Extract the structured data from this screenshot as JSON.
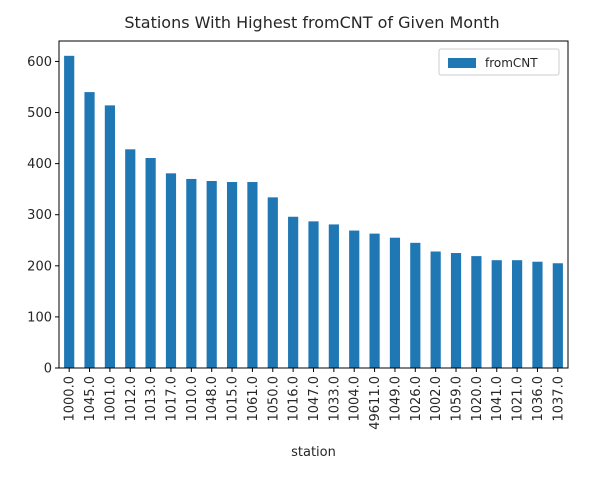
{
  "chart_data": {
    "type": "bar",
    "title": "Stations With Highest fromCNT of Given Month",
    "xlabel": "station",
    "ylabel": "",
    "ylim": [
      0,
      640
    ],
    "yticks": [
      0,
      100,
      200,
      300,
      400,
      500,
      600
    ],
    "grid": false,
    "legend_position": "top-right",
    "categories": [
      "1000.0",
      "1045.0",
      "1001.0",
      "1012.0",
      "1013.0",
      "1017.0",
      "1010.0",
      "1048.0",
      "1015.0",
      "1061.0",
      "1050.0",
      "1016.0",
      "1047.0",
      "1033.0",
      "1004.0",
      "49611.0",
      "1049.0",
      "1026.0",
      "1002.0",
      "1059.0",
      "1020.0",
      "1041.0",
      "1021.0",
      "1036.0",
      "1037.0"
    ],
    "series": [
      {
        "name": "fromCNT",
        "color": "#1f77b4",
        "values": [
          611,
          540,
          514,
          428,
          411,
          381,
          370,
          366,
          364,
          364,
          334,
          296,
          287,
          281,
          269,
          263,
          255,
          245,
          228,
          225,
          219,
          211,
          211,
          208,
          205
        ]
      }
    ]
  }
}
